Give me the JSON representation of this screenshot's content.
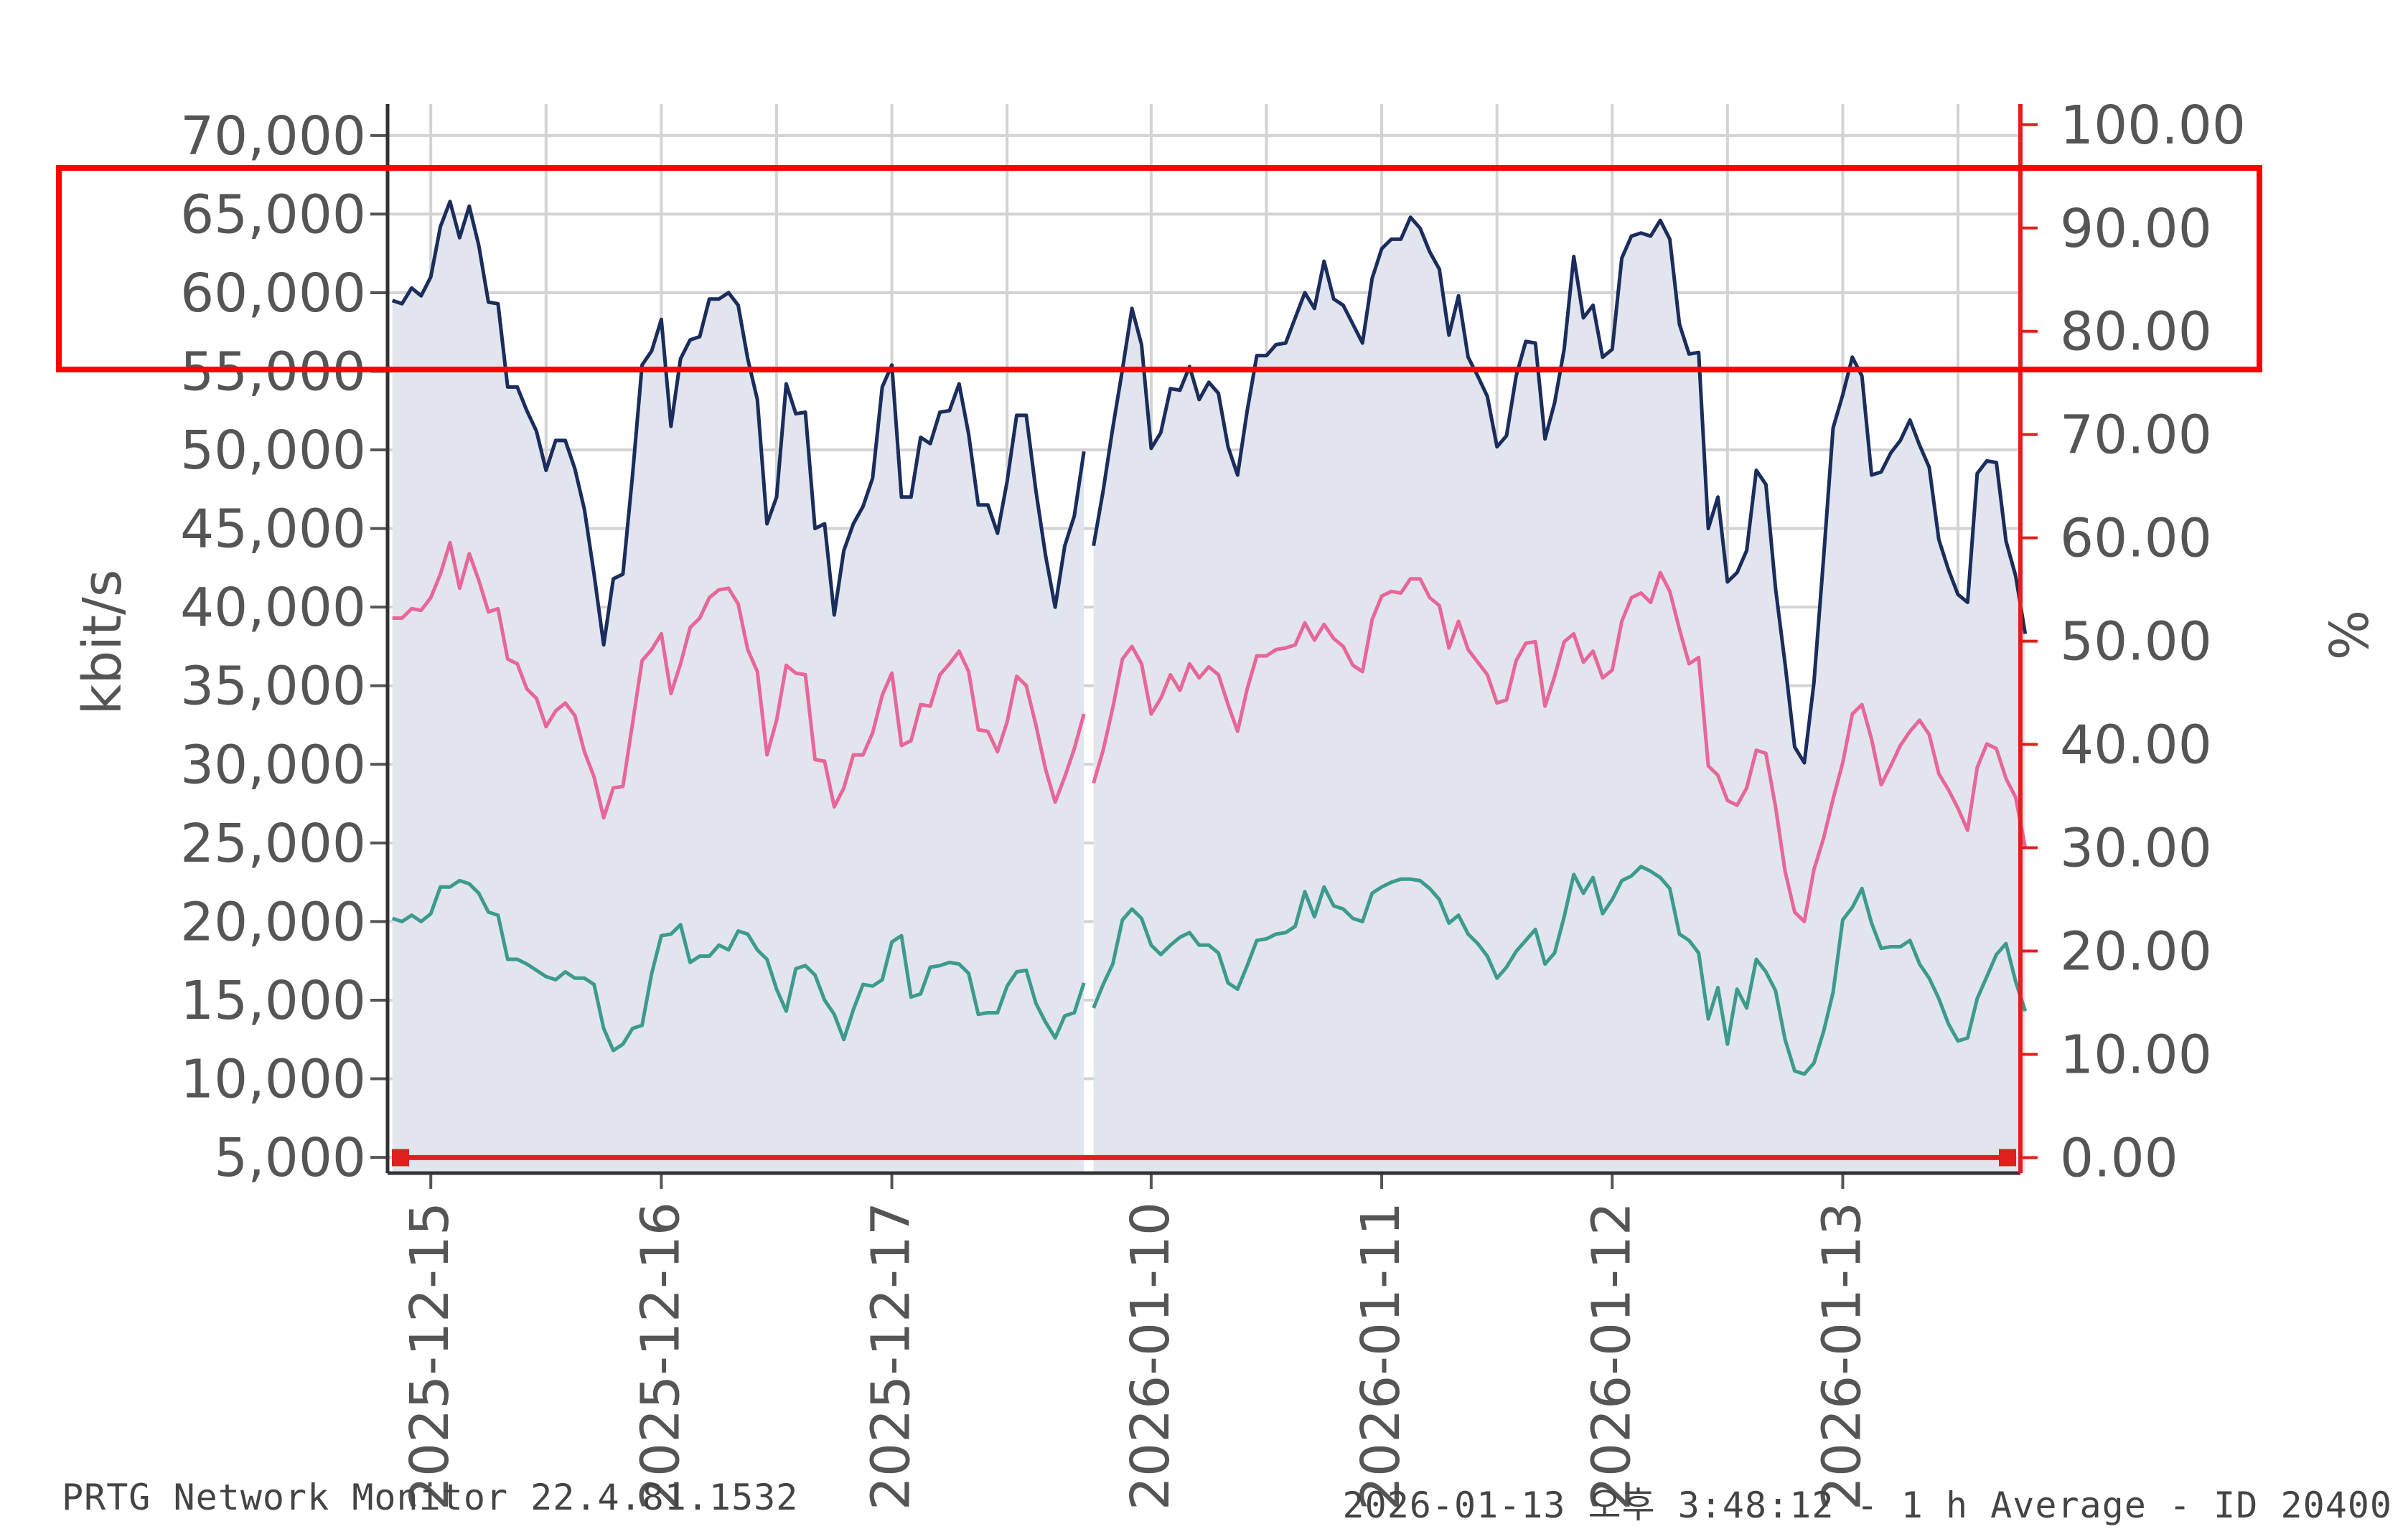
{
  "footer": {
    "left": "PRTG Network Monitor 22.4.81.1532",
    "right": "2026-01-13 오후 3:48:12 - 1 h Average - ID 20400"
  },
  "colors": {
    "series_total": "#1a2d5c",
    "series_pink": "#e8669a",
    "series_teal": "#3c9b8c",
    "right_axis": "#e0201c",
    "area_fill": "#e2e5ee",
    "grid": "#d3d3d3",
    "highlight_box": "#ff0000"
  },
  "annotations": {
    "highlight_box": "red rectangle around 58,000–68,000 kbit/s band"
  },
  "chart_data": {
    "type": "line",
    "ylabel": "kbit/s",
    "y2label": "%",
    "ylim": [
      4000,
      72000
    ],
    "y2lim": [
      -1.5,
      102
    ],
    "yticks": [
      "70,000",
      "65,000",
      "60,000",
      "55,000",
      "50,000",
      "45,000",
      "40,000",
      "35,000",
      "30,000",
      "25,000",
      "20,000",
      "15,000",
      "10,000",
      "5,000"
    ],
    "y2ticks": [
      "100.00",
      "90.00",
      "80.00",
      "70.00",
      "60.00",
      "50.00",
      "40.00",
      "30.00",
      "20.00",
      "10.00",
      "0.00"
    ],
    "xticks": [
      "2025-12-15",
      "2025-12-16",
      "2025-12-17",
      "2026-01-10",
      "2026-01-11",
      "2026-01-12",
      "2026-01-13"
    ],
    "xtick_positions": [
      4.5,
      28.5,
      52.5,
      79.5,
      103.5,
      127.5,
      151.5
    ],
    "x_segment_break": 73,
    "x_range": [
      0,
      170
    ],
    "grid": true,
    "series": [
      {
        "axis": "left",
        "filled": true,
        "values": [
          59500,
          59300,
          60300,
          59800,
          61000,
          64200,
          65800,
          63500,
          65500,
          63000,
          59400,
          59300,
          54000,
          54000,
          52500,
          51200,
          48700,
          50600,
          50600,
          48800,
          46200,
          42100,
          37600,
          41800,
          42100,
          48400,
          55400,
          56300,
          58300,
          51500,
          55800,
          57000,
          57200,
          59600,
          59600,
          60000,
          59200,
          55800,
          53200,
          45300,
          47000,
          54200,
          52300,
          52400,
          45000,
          45300,
          39500,
          43600,
          45300,
          46400,
          48200,
          54000,
          55400,
          47000,
          47000,
          50800,
          50400,
          52400,
          52500,
          54200,
          51000,
          46500,
          46500,
          44700,
          48000,
          52200,
          52200,
          47400,
          43300,
          40000,
          43900,
          45800,
          49900,
          43900,
          47400,
          51400,
          55100,
          59000,
          56700,
          50100,
          51100,
          53900,
          53800,
          55300,
          53200,
          54300,
          53600,
          50200,
          48400,
          52500,
          56000,
          56000,
          56700,
          56800,
          58400,
          60000,
          59000,
          62000,
          59600,
          59200,
          58000,
          56800,
          60900,
          62800,
          63400,
          63400,
          64800,
          64100,
          62600,
          61500,
          57300,
          59800,
          55900,
          54700,
          53400,
          50200,
          50900,
          54700,
          56900,
          56800,
          50700,
          53000,
          56400,
          62300,
          58400,
          59200,
          55900,
          56400,
          62200,
          63600,
          63800,
          63600,
          64600,
          63400,
          58000,
          56100,
          56200,
          45000,
          47000,
          41600,
          42200,
          43600,
          48700,
          47800,
          41200,
          36400,
          31100,
          30100,
          35200,
          43100,
          51400,
          53500,
          55900,
          54700,
          48400,
          48600,
          49800,
          50600,
          51900,
          50300,
          48900,
          44300,
          42400,
          40800,
          40300,
          48500,
          49300,
          49200,
          44200,
          42000,
          38300
        ]
      },
      {
        "axis": "left",
        "filled": false,
        "values": [
          39300,
          39300,
          39900,
          39800,
          40600,
          42100,
          44100,
          41200,
          43400,
          41700,
          39700,
          39900,
          36700,
          36400,
          34800,
          34200,
          32400,
          33400,
          33900,
          33100,
          30800,
          29200,
          26600,
          28500,
          28600,
          32600,
          36600,
          37300,
          38300,
          34500,
          36400,
          38700,
          39300,
          40600,
          41100,
          41200,
          40200,
          37300,
          35900,
          30600,
          32800,
          36300,
          35800,
          35700,
          30300,
          30200,
          27300,
          28500,
          30600,
          30600,
          32000,
          34400,
          35800,
          31200,
          31500,
          33800,
          33700,
          35700,
          36400,
          37200,
          35900,
          32200,
          32100,
          30800,
          32700,
          35600,
          35000,
          32500,
          29700,
          27600,
          29200,
          31000,
          33200,
          28800,
          30900,
          33600,
          36700,
          37500,
          36400,
          33200,
          34200,
          35700,
          34700,
          36400,
          35500,
          36200,
          35700,
          33800,
          32100,
          34800,
          36900,
          36900,
          37300,
          37400,
          37600,
          39000,
          37900,
          38900,
          38000,
          37500,
          36300,
          35900,
          39200,
          40700,
          41000,
          40900,
          41800,
          41800,
          40600,
          40100,
          37400,
          39100,
          37300,
          36500,
          35700,
          33900,
          34100,
          36600,
          37700,
          37800,
          33700,
          35600,
          37800,
          38300,
          36500,
          37200,
          35500,
          36000,
          39100,
          40600,
          40900,
          40300,
          42200,
          41000,
          38600,
          36400,
          36800,
          29900,
          29300,
          27700,
          27400,
          28500,
          30900,
          30700,
          27300,
          23200,
          20600,
          20000,
          23300,
          25300,
          27800,
          30100,
          33200,
          33800,
          31600,
          28700,
          29900,
          31200,
          32100,
          32800,
          31900,
          29400,
          28400,
          27200,
          25800,
          29800,
          31300,
          31000,
          29100,
          27900,
          24700
        ]
      },
      {
        "axis": "left",
        "filled": false,
        "values": [
          20200,
          20000,
          20400,
          20000,
          20500,
          22200,
          22200,
          22600,
          22400,
          21800,
          20600,
          20400,
          17600,
          17600,
          17300,
          16900,
          16500,
          16300,
          16800,
          16400,
          16400,
          16000,
          13200,
          11800,
          12200,
          13200,
          13400,
          16700,
          19100,
          19200,
          19800,
          17400,
          17800,
          17800,
          18500,
          18200,
          19400,
          19200,
          18200,
          17600,
          15700,
          14300,
          17000,
          17200,
          16600,
          15000,
          14100,
          12500,
          14400,
          16000,
          15900,
          16300,
          18700,
          19100,
          15200,
          15400,
          17100,
          17200,
          17400,
          17300,
          16700,
          14100,
          14200,
          14200,
          15900,
          16800,
          16900,
          14800,
          13600,
          12600,
          14000,
          14200,
          16100,
          14500,
          16000,
          17300,
          20100,
          20800,
          20200,
          18500,
          17900,
          18500,
          19000,
          19300,
          18500,
          18500,
          18000,
          16100,
          15700,
          17200,
          18800,
          18900,
          19200,
          19300,
          19700,
          21900,
          20300,
          22200,
          21000,
          20800,
          20200,
          20000,
          21800,
          22200,
          22500,
          22700,
          22700,
          22600,
          22100,
          21400,
          19900,
          20400,
          19200,
          18600,
          17800,
          16400,
          17100,
          18100,
          18800,
          19500,
          17300,
          18000,
          20300,
          23000,
          21800,
          22800,
          20500,
          21400,
          22600,
          22900,
          23500,
          23200,
          22800,
          22100,
          19200,
          18800,
          18000,
          13800,
          15800,
          12200,
          15700,
          14500,
          17600,
          16800,
          15600,
          12500,
          10500,
          10300,
          11000,
          13000,
          15500,
          20100,
          20900,
          22100,
          19900,
          18300,
          18400,
          18400,
          18800,
          17300,
          16400,
          15100,
          13500,
          12400,
          12600,
          15100,
          16500,
          17900,
          18600,
          16200,
          14300
        ]
      },
      {
        "axis": "right",
        "filled": false,
        "values": [
          0,
          0
        ]
      }
    ]
  }
}
